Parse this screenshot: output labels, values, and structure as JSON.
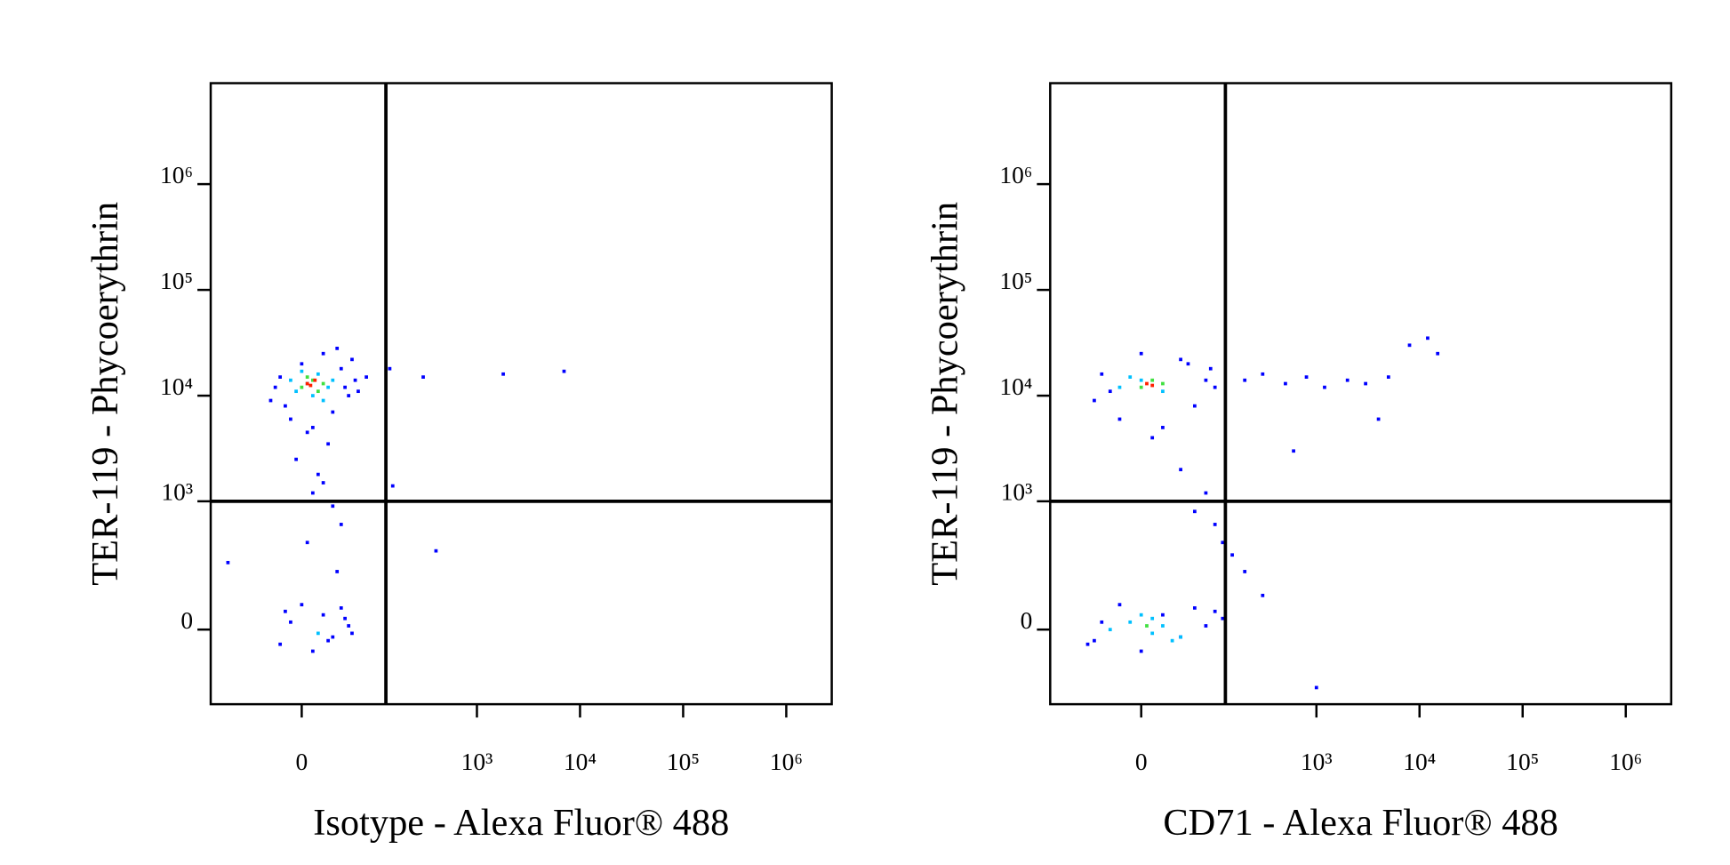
{
  "chart_data": [
    {
      "type": "scatter",
      "xlabel": "Isotype - Alexa Fluor® 488",
      "ylabel": "TER-119 - Phycoerythrin",
      "xscale": "biexponential",
      "xlinear_width": 40,
      "yscale": "biexponential",
      "ylinear_width": 123,
      "xlim": [
        -150,
        2760000
      ],
      "ylim": [
        -300,
        9000000
      ],
      "xticks": [
        0,
        {
          "value": 1000,
          "label": "10³"
        },
        {
          "value": 10000,
          "label": "10⁴"
        },
        {
          "value": 100000,
          "label": "10⁵"
        },
        {
          "value": 1000000,
          "label": "10⁶"
        }
      ],
      "yticks": [
        0,
        {
          "value": 1000,
          "label": "10³"
        },
        {
          "value": 10000,
          "label": "10⁴"
        },
        {
          "value": 100000,
          "label": "10⁵"
        },
        {
          "value": 1000000,
          "label": "10⁶"
        }
      ],
      "gate": {
        "x": 128,
        "y": 1000
      },
      "series": [
        {
          "color": "#0000ff",
          "x": [
            -30,
            -20,
            -10,
            0,
            10,
            20,
            30,
            40,
            50,
            60,
            -25,
            5,
            35,
            55,
            -15,
            25,
            45,
            15,
            -5,
            65,
            80,
            140,
            300,
            1800,
            7000,
            20,
            30,
            40,
            10,
            150,
            400,
            -20,
            -10,
            0,
            10,
            20,
            30,
            40,
            50,
            -15,
            25,
            45,
            55,
            5,
            35,
            -100
          ],
          "y": [
            9000,
            15000,
            6000,
            20000,
            5000,
            25000,
            7000,
            18000,
            10000,
            14000,
            12000,
            4500,
            28000,
            22000,
            8000,
            3500,
            12000,
            1800,
            2500,
            11000,
            15000,
            18000,
            15000,
            16000,
            17000,
            1500,
            900,
            600,
            1200,
            1400,
            330,
            -40,
            20,
            70,
            -60,
            40,
            -20,
            60,
            10,
            50,
            -30,
            30,
            -10,
            400,
            200,
            250
          ]
        },
        {
          "color": "#00c0ff",
          "x": [
            -5,
            5,
            15,
            25,
            -10,
            20,
            10,
            0,
            30,
            15
          ],
          "y": [
            11000,
            13000,
            16000,
            12000,
            14000,
            9000,
            10000,
            17000,
            14000,
            -10
          ]
        },
        {
          "color": "#40e040",
          "x": [
            0,
            10,
            20,
            5,
            15
          ],
          "y": [
            12000,
            14000,
            13000,
            15000,
            11000
          ]
        },
        {
          "color": "#ff2000",
          "x": [
            5,
            12,
            8
          ],
          "y": [
            13000,
            14000,
            12500
          ]
        }
      ]
    },
    {
      "type": "scatter",
      "xlabel": "CD71 - Alexa Fluor® 488",
      "ylabel": "TER-119 - Phycoerythrin",
      "xscale": "biexponential",
      "xlinear_width": 40,
      "yscale": "biexponential",
      "ylinear_width": 123,
      "xlim": [
        -150,
        2760000
      ],
      "ylim": [
        -300,
        9000000
      ],
      "xticks": [
        0,
        {
          "value": 1000,
          "label": "10³"
        },
        {
          "value": 10000,
          "label": "10⁴"
        },
        {
          "value": 100000,
          "label": "10⁵"
        },
        {
          "value": 1000000,
          "label": "10⁶"
        }
      ],
      "yticks": [
        0,
        {
          "value": 1000,
          "label": "10³"
        },
        {
          "value": 10000,
          "label": "10⁴"
        },
        {
          "value": 100000,
          "label": "10⁵"
        },
        {
          "value": 1000000,
          "label": "10⁶"
        }
      ],
      "gate": {
        "x": 128,
        "y": 1000
      },
      "series": [
        {
          "color": "#0000ff",
          "x": [
            -50,
            -40,
            -20,
            0,
            20,
            40,
            60,
            80,
            100,
            -30,
            10,
            50,
            90,
            200,
            300,
            500,
            800,
            1200,
            2000,
            3000,
            5000,
            8000,
            12000,
            15000,
            4000,
            600,
            40,
            60,
            80,
            100,
            120,
            150,
            200,
            -60,
            -40,
            -20,
            0,
            20,
            40,
            60,
            80,
            100,
            -50,
            120,
            300,
            1000
          ],
          "y": [
            9000,
            16000,
            6000,
            25000,
            5000,
            22000,
            8000,
            14000,
            12000,
            11000,
            4000,
            20000,
            18000,
            14000,
            16000,
            13000,
            15000,
            12000,
            14000,
            13000,
            15000,
            30000,
            35000,
            25000,
            6000,
            3000,
            2000,
            800,
            1200,
            600,
            400,
            300,
            200,
            -40,
            20,
            70,
            -60,
            40,
            -20,
            60,
            10,
            50,
            -30,
            30,
            100,
            -200
          ]
        },
        {
          "color": "#00c0ff",
          "x": [
            -20,
            0,
            20,
            10,
            -10,
            30,
            0,
            20,
            -30,
            10,
            40,
            -10
          ],
          "y": [
            12000,
            14000,
            11000,
            -10,
            20,
            -30,
            40,
            10,
            0,
            30,
            -20,
            15000
          ]
        },
        {
          "color": "#40e040",
          "x": [
            0,
            10,
            20,
            5
          ],
          "y": [
            12000,
            14000,
            13000,
            10
          ]
        },
        {
          "color": "#ff2000",
          "x": [
            5,
            10
          ],
          "y": [
            13000,
            12500
          ]
        }
      ]
    }
  ]
}
